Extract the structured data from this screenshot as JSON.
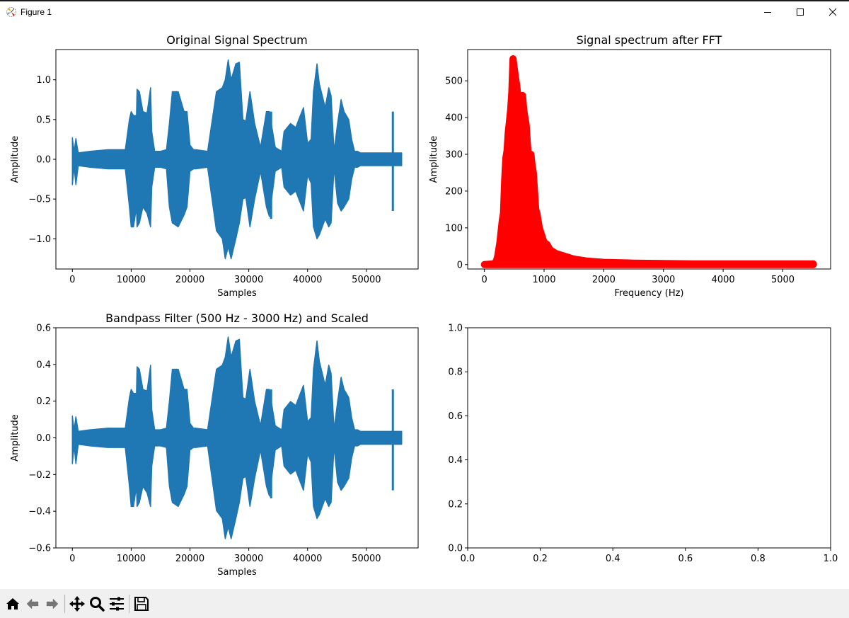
{
  "window": {
    "title": "Figure 1",
    "controls": [
      "minimize",
      "maximize",
      "close"
    ]
  },
  "toolbar": {
    "buttons": [
      "home-icon",
      "back-icon",
      "forward-icon",
      "pan-icon",
      "zoom-icon",
      "configure-subplots-icon",
      "save-icon"
    ]
  },
  "colors": {
    "waveform": "#1f77b4",
    "fft": "#ff0000",
    "toolbar_bg": "#f0f0f0"
  },
  "chart_data": [
    {
      "type": "line",
      "title": "Original Signal Spectrum",
      "xlabel": "Samples",
      "ylabel": "Amplitude",
      "xticks": [
        "0",
        "10000",
        "20000",
        "30000",
        "40000",
        "50000"
      ],
      "yticks": [
        "1.0",
        "0.5",
        "0.0",
        "−0.5",
        "−1.0"
      ],
      "xlim": [
        -2800,
        58800
      ],
      "ylim": [
        -1.38,
        1.38
      ],
      "series": [
        {
          "name": "signal",
          "color": "#1f77b4",
          "envelope_x": [
            0,
            300,
            600,
            1000,
            3000,
            6000,
            9000,
            9700,
            10000,
            10400,
            10900,
            11000,
            11400,
            12000,
            12700,
            13300,
            13500,
            14000,
            15000,
            16000,
            16500,
            17000,
            18000,
            19000,
            19500,
            20000,
            20600,
            21000,
            23000,
            24500,
            25500,
            26000,
            26500,
            27000,
            27800,
            28400,
            29000,
            29500,
            30200,
            31000,
            32000,
            33000,
            33500,
            34500,
            35600,
            36000,
            37100,
            38000,
            38500,
            39300,
            40000,
            40600,
            41000,
            41600,
            42000,
            43000,
            43600,
            44000,
            44500,
            45100,
            45700,
            46200,
            47000,
            47500,
            48000,
            48500,
            49000,
            50000,
            51500,
            53000,
            54200,
            55000,
            56000
          ],
          "upper": [
            0.27,
            0.1,
            0.26,
            0.08,
            0.1,
            0.12,
            0.12,
            0.5,
            0.6,
            0.55,
            0.55,
            0.88,
            0.85,
            0.6,
            0.58,
            0.9,
            0.35,
            0.1,
            0.1,
            0.12,
            0.45,
            0.85,
            0.85,
            0.6,
            0.6,
            0.18,
            0.12,
            0.12,
            0.1,
            0.85,
            0.9,
            1.0,
            1.25,
            1.0,
            1.2,
            1.22,
            0.5,
            0.48,
            0.85,
            0.45,
            0.15,
            0.6,
            0.6,
            0.15,
            0.1,
            0.35,
            0.45,
            0.4,
            0.5,
            0.65,
            0.2,
            0.25,
            0.85,
            1.2,
            0.95,
            0.65,
            0.9,
            0.8,
            0.1,
            0.45,
            0.75,
            0.6,
            0.5,
            0.25,
            0.1,
            0.1,
            0.08,
            0.08,
            0.08,
            0.08,
            0.08,
            0.08,
            0.08
          ],
          "lower": [
            -0.32,
            -0.1,
            -0.32,
            -0.08,
            -0.1,
            -0.12,
            -0.12,
            -0.6,
            -0.85,
            -0.85,
            -0.6,
            -0.85,
            -0.8,
            -0.6,
            -0.68,
            -0.85,
            -0.35,
            -0.1,
            -0.1,
            -0.12,
            -0.6,
            -0.8,
            -0.85,
            -0.7,
            -0.6,
            -0.15,
            -0.12,
            -0.12,
            -0.1,
            -0.9,
            -1.0,
            -1.25,
            -1.1,
            -1.25,
            -1.0,
            -0.8,
            -0.5,
            -0.48,
            -0.85,
            -0.5,
            -0.15,
            -0.6,
            -0.72,
            -0.15,
            -0.1,
            -0.35,
            -0.45,
            -0.4,
            -0.5,
            -0.65,
            -0.2,
            -0.3,
            -0.85,
            -1.0,
            -0.95,
            -0.75,
            -0.85,
            -0.8,
            -0.1,
            -0.55,
            -0.65,
            -0.6,
            -0.5,
            -0.25,
            -0.1,
            -0.1,
            -0.08,
            -0.08,
            -0.08,
            -0.08,
            -0.08,
            -0.08,
            -0.08
          ],
          "spikes": [
            {
              "x": 33800,
              "y": [
                -0.75,
                0.6
              ]
            },
            {
              "x": 54500,
              "y": [
                -0.65,
                0.6
              ]
            }
          ]
        }
      ]
    },
    {
      "type": "scatter",
      "title": "Signal spectrum after FFT",
      "xlabel": "Frequency (Hz)",
      "ylabel": "Amplitude",
      "xticks": [
        "0",
        "1000",
        "2000",
        "3000",
        "4000",
        "5000"
      ],
      "yticks": [
        "500",
        "400",
        "300",
        "200",
        "100",
        "0"
      ],
      "xlim": [
        -280,
        5800
      ],
      "ylim": [
        -12,
        585
      ],
      "series": [
        {
          "name": "fft",
          "color": "#ff0000",
          "x": [
            0,
            150,
            180,
            200,
            220,
            260,
            300,
            320,
            340,
            360,
            380,
            400,
            420,
            440,
            460,
            480,
            500,
            520,
            540,
            560,
            580,
            600,
            620,
            640,
            660,
            680,
            700,
            720,
            740,
            760,
            780,
            800,
            820,
            840,
            860,
            880,
            900,
            920,
            960,
            1000,
            1050,
            1100,
            1200,
            1300,
            1400,
            1500,
            1700,
            2000,
            2500,
            3000,
            3500,
            4000,
            4500,
            5000,
            5512
          ],
          "y": [
            0,
            2,
            5,
            10,
            20,
            60,
            120,
            140,
            230,
            290,
            310,
            360,
            390,
            420,
            470,
            560,
            535,
            510,
            490,
            460,
            440,
            450,
            410,
            460,
            420,
            400,
            380,
            330,
            290,
            300,
            300,
            270,
            250,
            200,
            150,
            140,
            120,
            100,
            80,
            60,
            55,
            40,
            30,
            25,
            20,
            15,
            10,
            6,
            4,
            3,
            2,
            2,
            2,
            2,
            2
          ]
        }
      ]
    },
    {
      "type": "line",
      "title": "Bandpass Filter (500 Hz - 3000 Hz) and Scaled",
      "xlabel": "Samples",
      "ylabel": "Amplitude",
      "xticks": [
        "0",
        "10000",
        "20000",
        "30000",
        "40000",
        "50000"
      ],
      "yticks": [
        "0.6",
        "0.4",
        "0.2",
        "0.0",
        "−0.2",
        "−0.4",
        "−0.6"
      ],
      "xlim": [
        -2800,
        58800
      ],
      "ylim": [
        -0.6,
        0.6
      ],
      "series": [
        {
          "name": "filtered",
          "color": "#1f77b4",
          "scale_from_original": 0.44
        }
      ]
    },
    {
      "type": "line",
      "title": "",
      "xlabel": "",
      "ylabel": "",
      "xticks": [
        "0.0",
        "0.2",
        "0.4",
        "0.6",
        "0.8",
        "1.0"
      ],
      "yticks": [
        "1.0",
        "0.8",
        "0.6",
        "0.4",
        "0.2",
        "0.0"
      ],
      "xlim": [
        0,
        1
      ],
      "ylim": [
        0,
        1
      ],
      "series": []
    }
  ]
}
